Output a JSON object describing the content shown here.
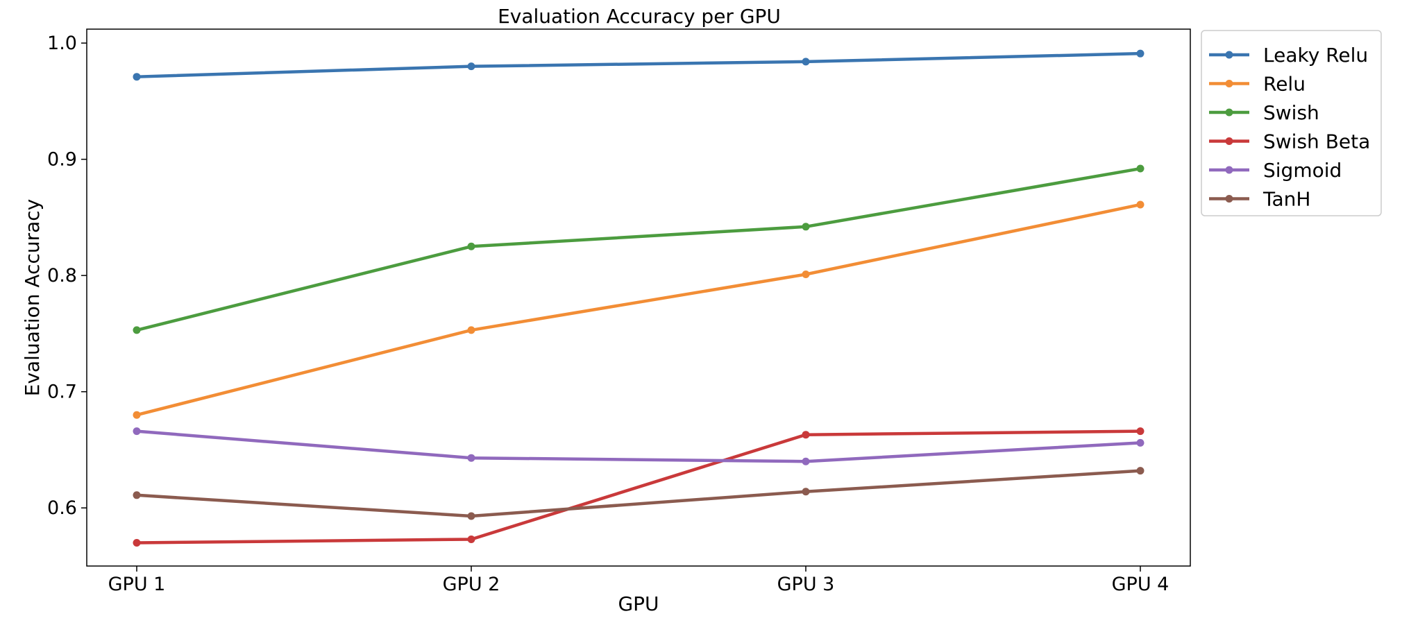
{
  "chart_data": {
    "type": "line",
    "title": "Evaluation Accuracy per GPU",
    "xlabel": "GPU",
    "ylabel": "Evaluation Accuracy",
    "categories": [
      "GPU 1",
      "GPU 2",
      "GPU 3",
      "GPU 4"
    ],
    "ylim": [
      0.55,
      1.012
    ],
    "yticks": [
      "0.6",
      "0.7",
      "0.8",
      "0.9",
      "1.0"
    ],
    "grid": false,
    "legend_position": "outside-top-right",
    "series": [
      {
        "name": "Leaky Relu",
        "color": "#3a75b0",
        "values": [
          0.971,
          0.98,
          0.984,
          0.991
        ]
      },
      {
        "name": "Relu",
        "color": "#f28d35",
        "values": [
          0.68,
          0.753,
          0.801,
          0.861
        ]
      },
      {
        "name": "Swish",
        "color": "#4c9c3f",
        "values": [
          0.753,
          0.825,
          0.842,
          0.892
        ]
      },
      {
        "name": "Swish Beta",
        "color": "#c9393a",
        "values": [
          0.57,
          0.573,
          0.663,
          0.666
        ]
      },
      {
        "name": "Sigmoid",
        "color": "#9069bd",
        "values": [
          0.666,
          0.643,
          0.64,
          0.656
        ]
      },
      {
        "name": "TanH",
        "color": "#8b5b4f",
        "values": [
          0.611,
          0.593,
          0.614,
          0.632
        ]
      }
    ]
  }
}
